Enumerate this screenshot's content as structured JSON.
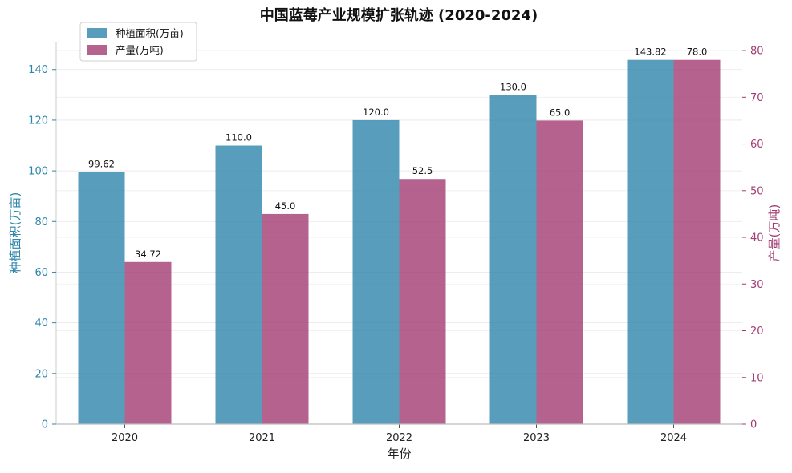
{
  "chart_data": {
    "type": "bar",
    "title": "中国蓝莓产业规模扩张轨迹 (2020-2024)",
    "xlabel": "年份",
    "categories": [
      "2020",
      "2021",
      "2022",
      "2023",
      "2024"
    ],
    "series": [
      {
        "name": "种植面积(万亩)",
        "axis": "left",
        "color": "#2e86ab",
        "values": [
          99.62,
          110.0,
          120.0,
          130.0,
          143.82
        ],
        "labels": [
          "99.62",
          "110.0",
          "120.0",
          "130.0",
          "143.82"
        ]
      },
      {
        "name": "产量(万吨)",
        "axis": "right",
        "color": "#a23b72",
        "values": [
          34.72,
          45.0,
          52.5,
          65.0,
          78.0
        ],
        "labels": [
          "34.72",
          "45.0",
          "52.5",
          "65.0",
          "78.0"
        ]
      }
    ],
    "y_left": {
      "label": "种植面积(万亩)",
      "color": "#2e86ab",
      "range": [
        0,
        151
      ],
      "ticks": [
        0,
        20,
        40,
        60,
        80,
        100,
        120,
        140
      ],
      "tick_labels": [
        "0",
        "20",
        "40",
        "60",
        "80",
        "100",
        "120",
        "140"
      ]
    },
    "y_right": {
      "label": "产量(万吨)",
      "color": "#a23b72",
      "range": [
        0,
        81.9
      ],
      "ticks": [
        0,
        10,
        20,
        30,
        40,
        50,
        60,
        70,
        80
      ],
      "tick_labels": [
        "0",
        "10",
        "20",
        "30",
        "40",
        "50",
        "60",
        "70",
        "80"
      ]
    },
    "legend": {
      "position": "top-left"
    },
    "grid": true
  }
}
